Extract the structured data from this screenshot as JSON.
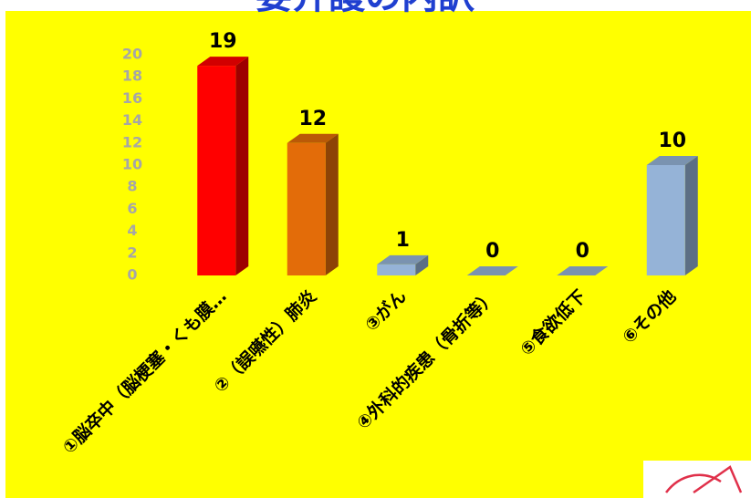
{
  "chart_data": {
    "type": "bar3d",
    "title": "要介護の内訳",
    "categories": [
      "①脳卒中（脳梗塞・くも膜…",
      "②（誤嚥性）肺炎",
      "③がん",
      "④外科的疾患（骨折等）",
      "⑤食欲低下",
      "⑥その他"
    ],
    "values": [
      19,
      12,
      1,
      0,
      0,
      10
    ],
    "colors": [
      "#ff0000",
      "#e36c09",
      "#95b3d7",
      "#95b3d7",
      "#95b3d7",
      "#95b3d7"
    ],
    "ylim": [
      0,
      20
    ],
    "yticks": [
      0,
      2,
      4,
      6,
      8,
      10,
      12,
      14,
      16,
      18,
      20
    ],
    "grid": false
  }
}
